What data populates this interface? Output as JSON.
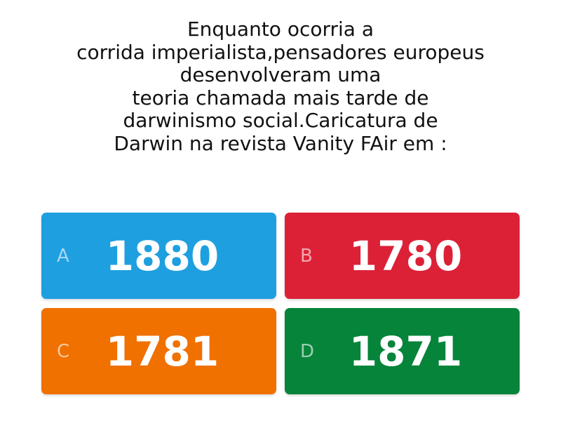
{
  "question": {
    "lines": [
      "Enquanto ocorria a",
      "corrida imperialista,pensadores europeus",
      "desenvolveram uma",
      "teoria chamada mais tarde de",
      "darwinismo social.Caricatura de",
      "Darwin na revista Vanity FAir em :"
    ]
  },
  "options": [
    {
      "letter": "A",
      "value": "1880",
      "color": "#1e9fe0"
    },
    {
      "letter": "B",
      "value": "1780",
      "color": "#dc2137"
    },
    {
      "letter": "C",
      "value": "1781",
      "color": "#f07000"
    },
    {
      "letter": "D",
      "value": "1871",
      "color": "#06843a"
    }
  ]
}
